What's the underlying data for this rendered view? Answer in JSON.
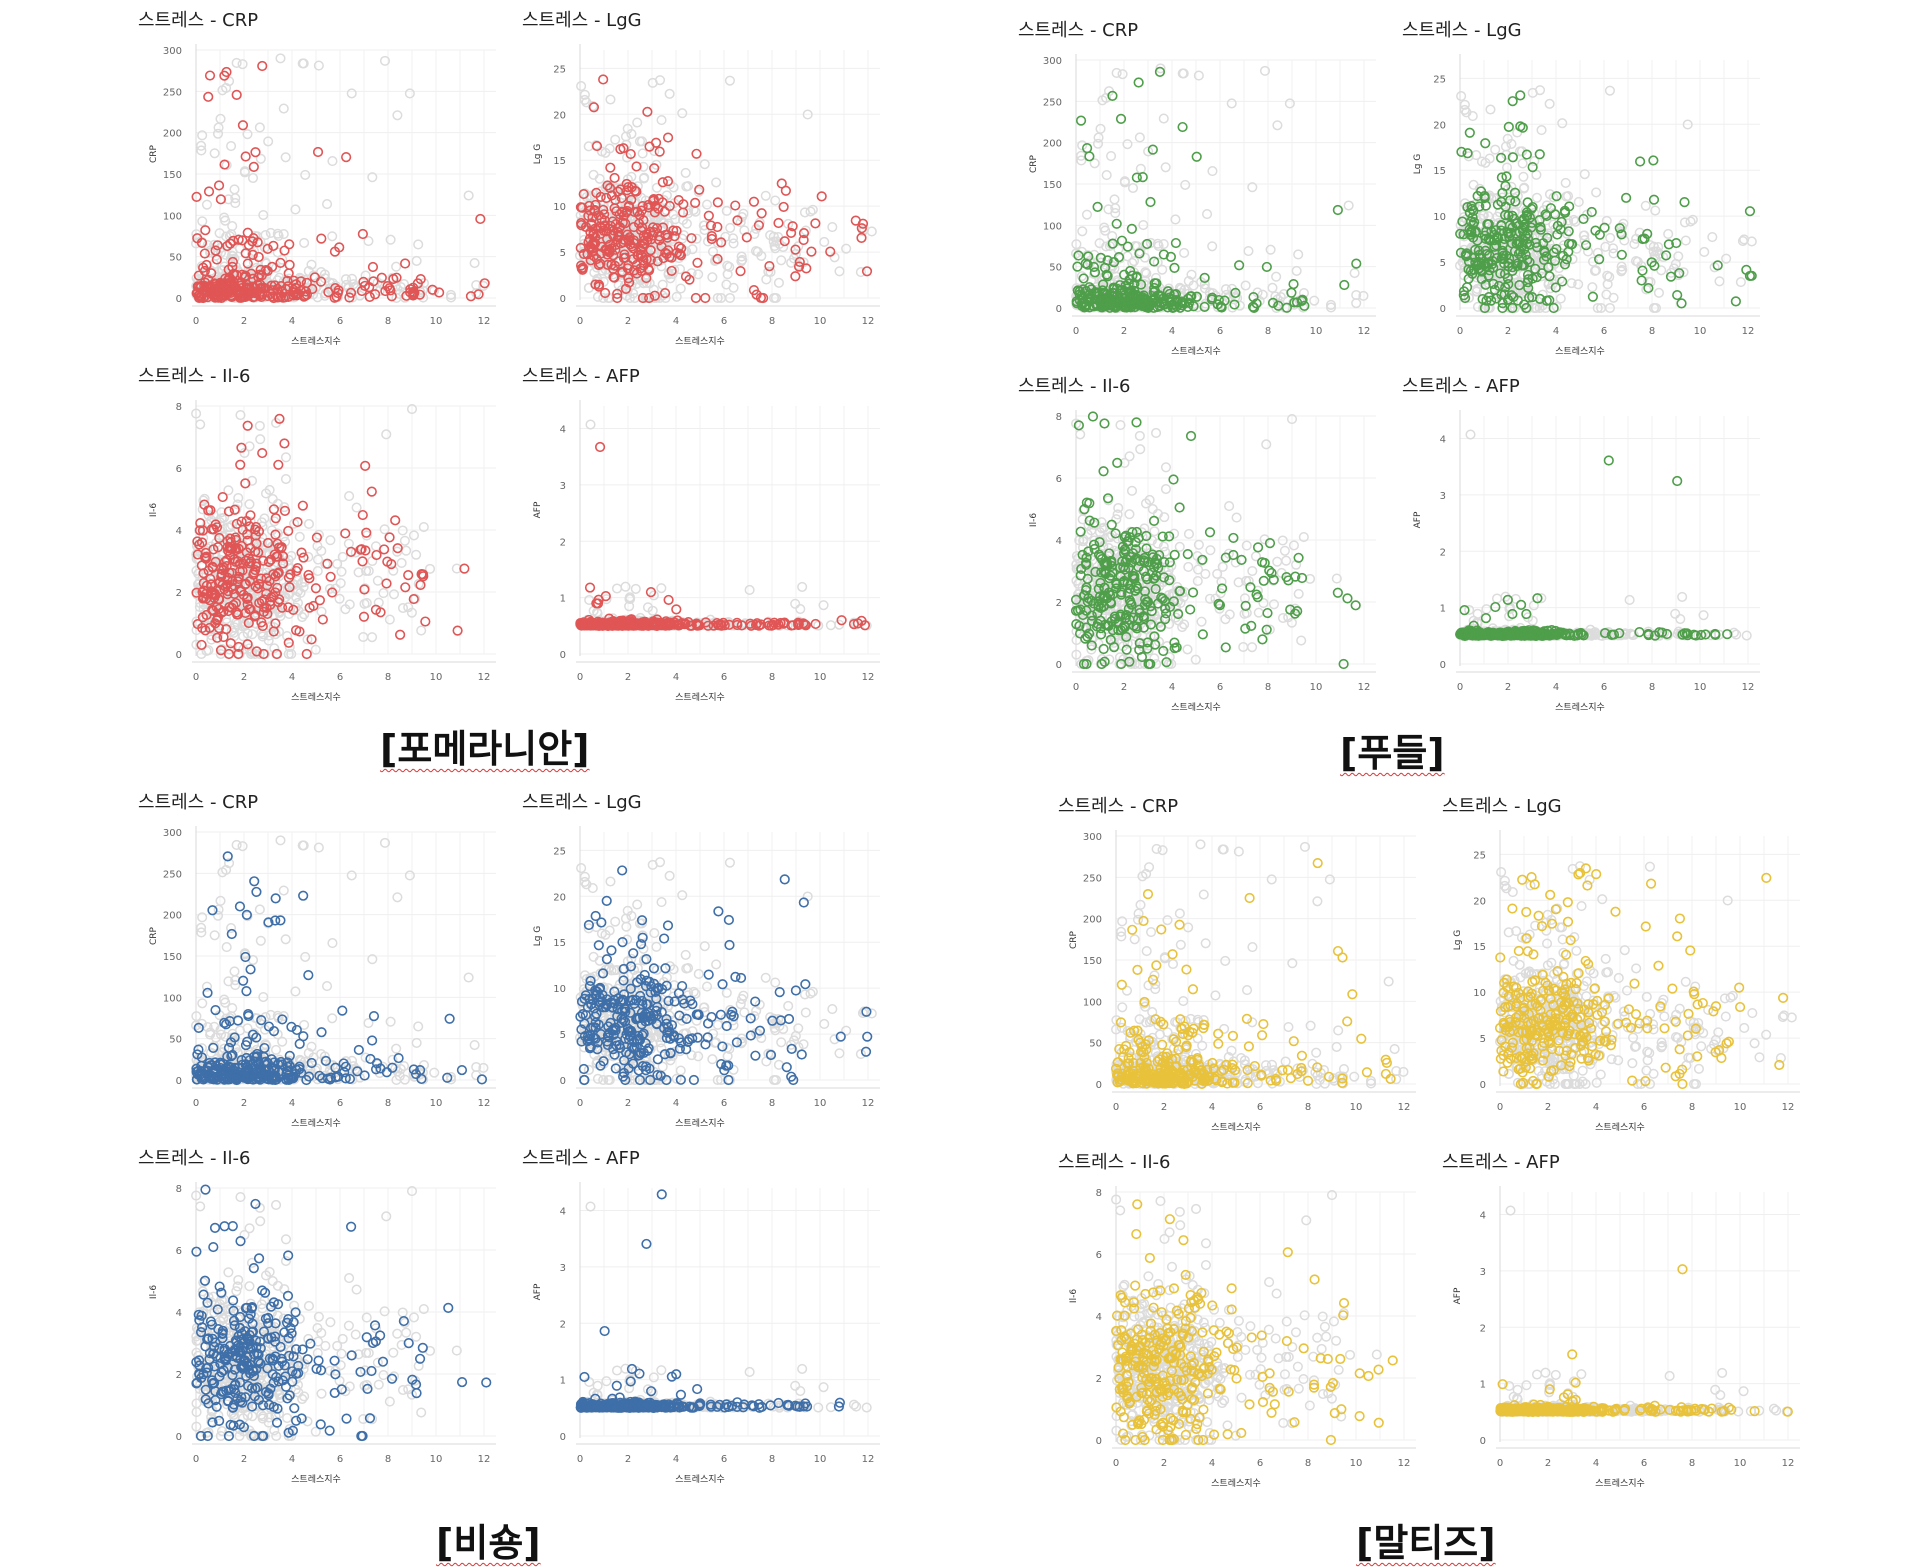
{
  "groups": [
    {
      "caption": "[포메라니안]",
      "color": "#e05555",
      "seed": 11,
      "charts": [
        {
          "title": "스트레스 - CRP",
          "ylabel": "CRP",
          "xlabel": "스트레스지수"
        },
        {
          "title": "스트레스 - LgG",
          "ylabel": "Lg G",
          "xlabel": "스트레스지수"
        },
        {
          "title": "스트레스 - Il-6",
          "ylabel": "Il-6",
          "xlabel": "스트레스지수"
        },
        {
          "title": "스트레스 - AFP",
          "ylabel": "AFP",
          "xlabel": "스트레스지수"
        }
      ]
    },
    {
      "caption": "[푸들]",
      "color": "#4e9e4a",
      "seed": 23,
      "charts": [
        {
          "title": "스트레스 - CRP",
          "ylabel": "CRP",
          "xlabel": "스트레스지수"
        },
        {
          "title": "스트레스 - LgG",
          "ylabel": "Lg G",
          "xlabel": "스트레스지수"
        },
        {
          "title": "스트레스 - Il-6",
          "ylabel": "Il-6",
          "xlabel": "스트레스지수"
        },
        {
          "title": "스트레스 - AFP",
          "ylabel": "AFP",
          "xlabel": "스트레스지수"
        }
      ]
    },
    {
      "caption": "[비숑]",
      "color": "#3f6fa8",
      "seed": 37,
      "charts": [
        {
          "title": "스트레스 - CRP",
          "ylabel": "CRP",
          "xlabel": "스트레스지수"
        },
        {
          "title": "스트레스 - LgG",
          "ylabel": "Lg G",
          "xlabel": "스트레스지수"
        },
        {
          "title": "스트레스 - Il-6",
          "ylabel": "Il-6",
          "xlabel": "스트레스지수"
        },
        {
          "title": "스트레스 - AFP",
          "ylabel": "AFP",
          "xlabel": "스트레스지수"
        }
      ]
    },
    {
      "caption": "[말티즈]",
      "color": "#e8c23a",
      "seed": 53,
      "charts": [
        {
          "title": "스트레스 - CRP",
          "ylabel": "CRP",
          "xlabel": "스트레스지수"
        },
        {
          "title": "스트레스 - LgG",
          "ylabel": "Lg G",
          "xlabel": "스트레스지수"
        },
        {
          "title": "스트레스 - Il-6",
          "ylabel": "Il-6",
          "xlabel": "스트레스지수"
        },
        {
          "title": "스트레스 - AFP",
          "ylabel": "AFP",
          "xlabel": "스트레스지수"
        }
      ]
    }
  ],
  "background_color": "#dcdcdc",
  "chart_data": [
    {
      "type": "scatter",
      "name": "CRP",
      "x_ticks": [
        0,
        2,
        4,
        6,
        8,
        10,
        12
      ],
      "xlim": [
        0,
        12.5
      ],
      "ylim": [
        0,
        300
      ],
      "y_ticks": [
        0,
        50,
        100,
        150,
        200,
        250,
        300
      ],
      "xlabel": "스트레스지수",
      "ylabel": "CRP",
      "grid": true
    },
    {
      "type": "scatter",
      "name": "LgG",
      "x_ticks": [
        0,
        2,
        4,
        6,
        8,
        10,
        12
      ],
      "xlim": [
        0,
        12.5
      ],
      "ylim": [
        0,
        27
      ],
      "y_ticks": [
        0,
        5,
        10,
        15,
        20,
        25
      ],
      "xlabel": "스트레스지수",
      "ylabel": "Lg G",
      "grid": true
    },
    {
      "type": "scatter",
      "name": "Il-6",
      "x_ticks": [
        0,
        2,
        4,
        6,
        8,
        10,
        12
      ],
      "xlim": [
        0,
        12.5
      ],
      "ylim": [
        0,
        8
      ],
      "y_ticks": [
        0,
        2,
        4,
        6,
        8
      ],
      "xlabel": "스트레스지수",
      "ylabel": "Il-6",
      "grid": true
    },
    {
      "type": "scatter",
      "name": "AFP",
      "x_ticks": [
        0,
        2,
        4,
        6,
        8,
        10,
        12
      ],
      "xlim": [
        0,
        12.5
      ],
      "ylim": [
        0,
        4.4
      ],
      "y_ticks": [
        0,
        1,
        2,
        3,
        4
      ],
      "xlabel": "스트레스지수",
      "ylabel": "AFP",
      "grid": true
    }
  ]
}
